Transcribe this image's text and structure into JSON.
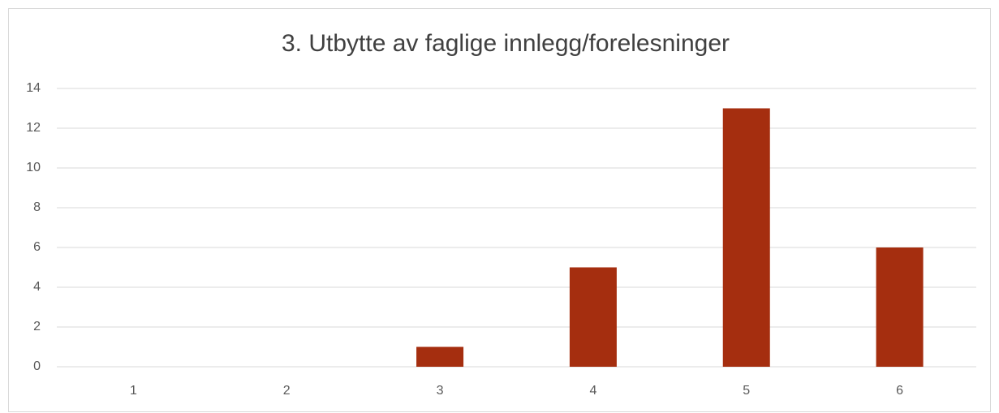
{
  "chart_data": {
    "type": "bar",
    "title": "3. Utbytte av faglige innlegg/forelesninger",
    "categories": [
      "1",
      "2",
      "3",
      "4",
      "5",
      "6"
    ],
    "values": [
      0,
      0,
      1,
      5,
      13,
      6
    ],
    "color": "#a52e0f",
    "ylim": [
      0,
      14
    ],
    "yticks": [
      0,
      2,
      4,
      6,
      8,
      10,
      12,
      14
    ],
    "grid": true
  }
}
